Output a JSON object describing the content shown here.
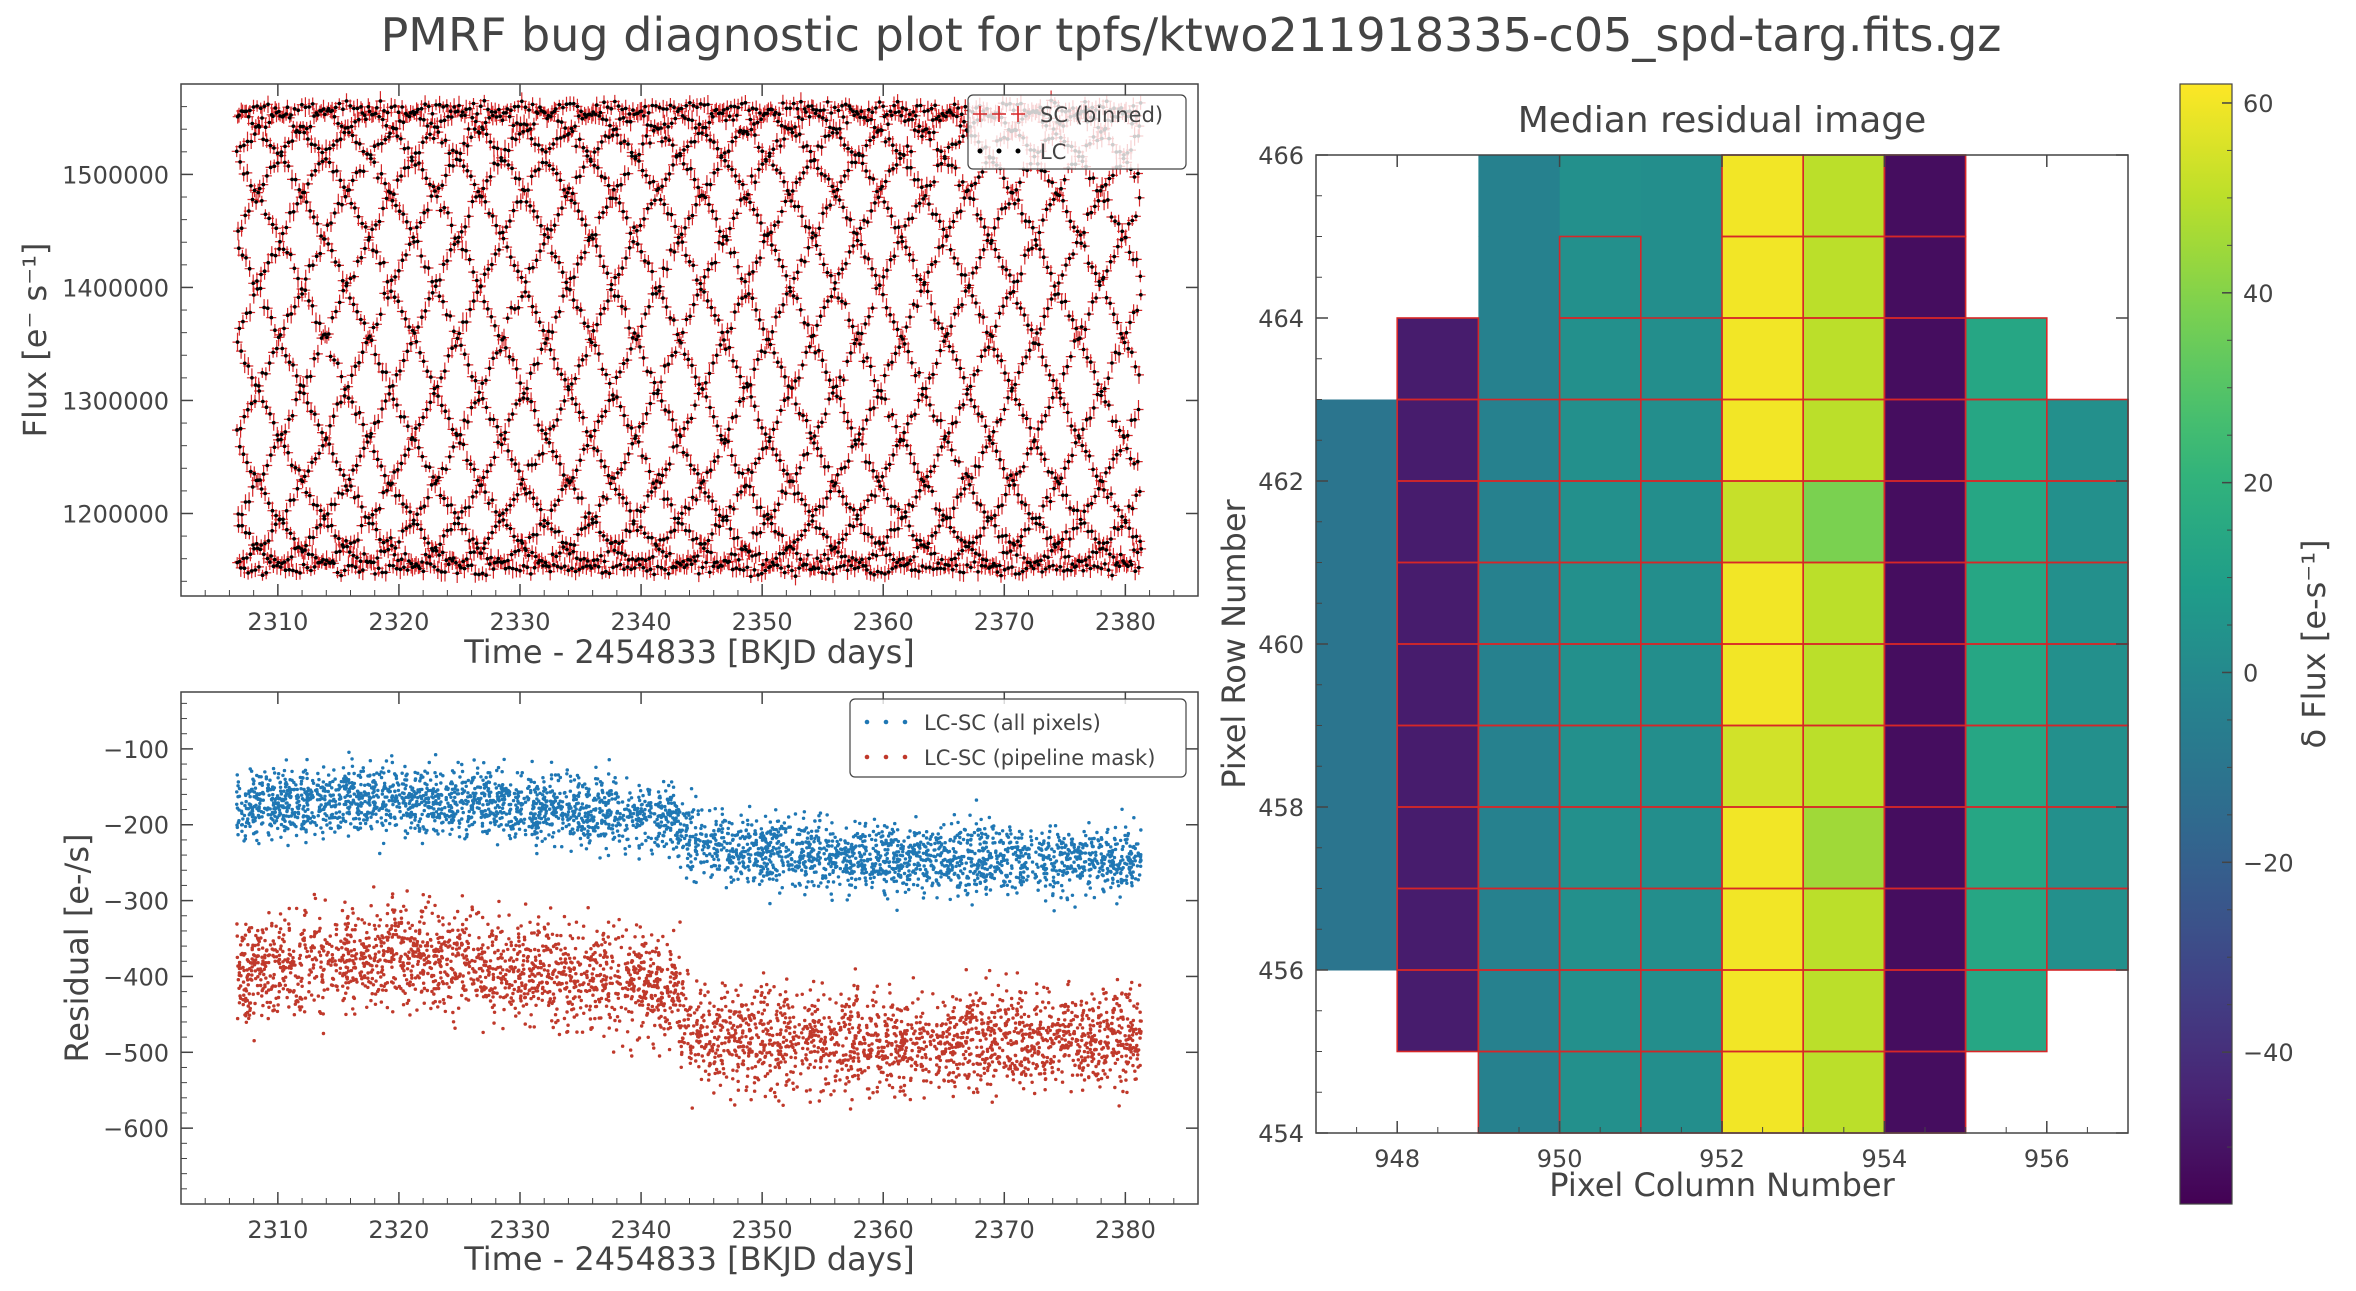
{
  "figure_title": "PMRF bug diagnostic plot for tpfs/ktwo211918335-c05_spd-targ.fits.gz",
  "chart_data": [
    {
      "type": "scatter",
      "name": "lightcurve",
      "xlabel": "Time - 2454833 [BKJD days]",
      "ylabel": "Flux [e⁻ s⁻¹]",
      "xlim": [
        2302,
        2386
      ],
      "ylim": [
        1127000,
        1580000
      ],
      "xticks": [
        2310,
        2320,
        2330,
        2340,
        2350,
        2360,
        2370,
        2380
      ],
      "yticks": [
        1200000,
        1300000,
        1400000,
        1500000
      ],
      "time_range": [
        2306.6,
        2381.3
      ],
      "series": [
        {
          "name": "SC (binned)",
          "marker": "errorbar",
          "color": "#d62728"
        },
        {
          "name": "LC",
          "marker": "dot",
          "color": "#000000"
        }
      ],
      "flux_range": [
        1150000,
        1560000
      ],
      "n_points": 3500
    },
    {
      "type": "scatter",
      "name": "residuals",
      "xlabel": "Time - 2454833 [BKJD days]",
      "ylabel": "Residual [e-/s]",
      "xlim": [
        2302,
        2386
      ],
      "ylim": [
        -700,
        -25
      ],
      "xticks": [
        2310,
        2320,
        2330,
        2340,
        2350,
        2360,
        2370,
        2380
      ],
      "yticks": [
        -100,
        -200,
        -300,
        -400,
        -500,
        -600
      ],
      "series": [
        {
          "name": "LC-SC (all pixels)",
          "color": "#1f77b4",
          "trend_x": [
            2306.6,
            2320,
            2340,
            2343,
            2344,
            2360,
            2381.3
          ],
          "trend_y": [
            -175,
            -165,
            -185,
            -195,
            -225,
            -245,
            -245
          ],
          "scatter": 32
        },
        {
          "name": "LC-SC (pipeline mask)",
          "color": "#c0392b",
          "trend_x": [
            2306.6,
            2320,
            2340,
            2343,
            2344,
            2360,
            2381.3
          ],
          "trend_y": [
            -395,
            -370,
            -410,
            -420,
            -475,
            -485,
            -480
          ],
          "scatter": 48
        }
      ],
      "n_points": 3500
    },
    {
      "type": "heatmap",
      "name": "median_residual_image",
      "title": "Median residual image",
      "xlabel": "Pixel Column Number",
      "ylabel": "Pixel Row Number",
      "xlim": [
        947,
        957
      ],
      "ylim": [
        454,
        466
      ],
      "xticks": [
        948,
        950,
        952,
        954,
        956
      ],
      "yticks": [
        454,
        456,
        458,
        460,
        462,
        464,
        466
      ],
      "colorbar": {
        "label": "δ Flux [e-s⁻¹]",
        "vmin": -56,
        "vmax": 62,
        "ticks": [
          60,
          40,
          20,
          0,
          -20,
          -40
        ],
        "cmap": "viridis"
      },
      "columns": [
        {
          "col": 947,
          "row_start": 456,
          "row_end": 463,
          "value": -10,
          "grid": false
        },
        {
          "col": 948,
          "row_start": 455,
          "row_end": 464,
          "value": -47,
          "grid": true
        },
        {
          "col": 949,
          "row_start": 454,
          "row_end": 466,
          "value": -4,
          "grid": true,
          "grid_row_start": 454,
          "grid_row_end": 463
        },
        {
          "col": 950,
          "row_start": 454,
          "row_end": 466,
          "value": 3,
          "grid": true,
          "grid_row_start": 454,
          "grid_row_end": 465
        },
        {
          "col": 951,
          "row_start": 454,
          "row_end": 466,
          "value": 2,
          "grid": true,
          "grid_row_start": 454,
          "grid_row_end": 464
        },
        {
          "col": 952,
          "row_start": 454,
          "row_end": 466,
          "value": 60,
          "grid": true,
          "overrides": [
            {
              "row": 461,
              "value": 52
            },
            {
              "row": 458,
              "value": 54
            }
          ]
        },
        {
          "col": 953,
          "row_start": 454,
          "row_end": 466,
          "value": 50,
          "grid": true,
          "overrides": [
            {
              "row": 461,
              "value": 38
            },
            {
              "row": 457,
              "value": 45
            }
          ]
        },
        {
          "col": 954,
          "row_start": 454,
          "row_end": 466,
          "value": -52,
          "grid": true
        },
        {
          "col": 955,
          "row_start": 455,
          "row_end": 464,
          "value": 14,
          "grid": true
        },
        {
          "col": 956,
          "row_start": 456,
          "row_end": 463,
          "value": 3,
          "grid": true
        }
      ]
    }
  ]
}
